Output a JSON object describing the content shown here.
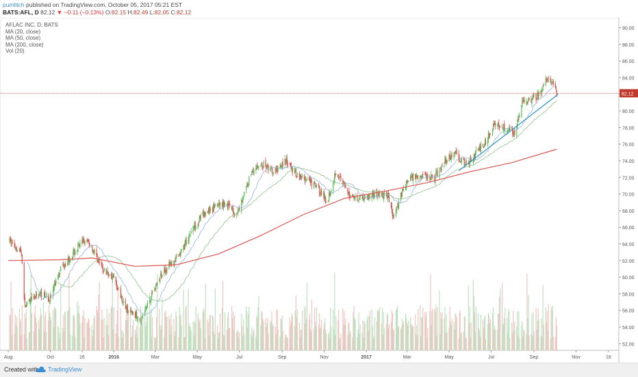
{
  "header": {
    "user": "pumlitch",
    "published": "published on TradingView.com, October 05, 2017 05:21 EST",
    "symbol": "BATS:AFL, D",
    "last": "82.12",
    "change": "−0.11 (−0.13%)",
    "o_label": "O:",
    "o": "82.15",
    "h_label": "H:",
    "h": "82.49",
    "l_label": "L:",
    "l": "82.05",
    "c_label": "C:",
    "c": "82.12"
  },
  "legend": [
    "AFLAC INC, D, BATS",
    "MA (20, close)",
    "MA (50, close)",
    "MA (200, close)",
    "Vol (20)"
  ],
  "footer": {
    "created": "Created with",
    "brand": "TradingView"
  },
  "colors": {
    "up": "#5cb85c",
    "down": "#d9534f",
    "ma200": "#d9534f",
    "trend": "#2a8fbf",
    "price_line": "#e05050"
  },
  "chart_data": {
    "type": "candlestick",
    "title": "AFLAC INC, D, BATS",
    "ylim": [
      51.2,
      91.2
    ],
    "y_ticks": [
      52,
      54,
      56,
      58,
      60,
      62,
      64,
      66,
      68,
      70,
      72,
      74,
      76,
      78,
      80,
      82,
      84,
      86,
      88,
      90
    ],
    "x_ticks": [
      "Aug",
      "Oct",
      "16",
      "2016",
      "Mar",
      "May",
      "Jul",
      "Sep",
      "Nov",
      "2017",
      "Mar",
      "May",
      "Jul",
      "Sep",
      "Nov",
      "18"
    ],
    "x_ticks_bold": [
      "2016",
      "2017"
    ],
    "last_price": "82.12",
    "price_anchors": [
      [
        "2015-08-01",
        64.5
      ],
      [
        "2015-08-20",
        63.0
      ],
      [
        "2015-08-25",
        56.5
      ],
      [
        "2015-09-15",
        58.0
      ],
      [
        "2015-10-01",
        57.5
      ],
      [
        "2015-10-15",
        61.0
      ],
      [
        "2015-11-05",
        63.0
      ],
      [
        "2015-11-20",
        64.5
      ],
      [
        "2015-12-01",
        63.5
      ],
      [
        "2015-12-15",
        61.0
      ],
      [
        "2015-12-31",
        60.0
      ],
      [
        "2016-01-20",
        56.0
      ],
      [
        "2016-02-10",
        55.0
      ],
      [
        "2016-02-25",
        58.0
      ],
      [
        "2016-03-15",
        61.0
      ],
      [
        "2016-04-05",
        62.5
      ],
      [
        "2016-04-25",
        66.0
      ],
      [
        "2016-05-15",
        68.0
      ],
      [
        "2016-06-10",
        69.0
      ],
      [
        "2016-06-27",
        67.5
      ],
      [
        "2016-07-10",
        70.5
      ],
      [
        "2016-07-20",
        73.0
      ],
      [
        "2016-08-05",
        73.5
      ],
      [
        "2016-08-20",
        72.5
      ],
      [
        "2016-09-05",
        74.0
      ],
      [
        "2016-09-20",
        72.5
      ],
      [
        "2016-10-10",
        71.5
      ],
      [
        "2016-10-25",
        70.5
      ],
      [
        "2016-11-05",
        69.0
      ],
      [
        "2016-11-18",
        72.8
      ],
      [
        "2016-12-05",
        70.0
      ],
      [
        "2016-12-20",
        69.5
      ],
      [
        "2017-01-15",
        70.0
      ],
      [
        "2017-02-01",
        69.8
      ],
      [
        "2017-02-10",
        67.0
      ],
      [
        "2017-02-20",
        70.0
      ],
      [
        "2017-03-05",
        72.0
      ],
      [
        "2017-03-20",
        72.3
      ],
      [
        "2017-04-10",
        72.0
      ],
      [
        "2017-04-25",
        74.0
      ],
      [
        "2017-05-10",
        75.0
      ],
      [
        "2017-05-25",
        73.5
      ],
      [
        "2017-06-10",
        75.0
      ],
      [
        "2017-06-25",
        76.5
      ],
      [
        "2017-07-05",
        78.5
      ],
      [
        "2017-07-20",
        78.0
      ],
      [
        "2017-08-05",
        77.5
      ],
      [
        "2017-08-15",
        81.0
      ],
      [
        "2017-08-30",
        81.5
      ],
      [
        "2017-09-10",
        82.0
      ],
      [
        "2017-09-20",
        84.0
      ],
      [
        "2017-09-30",
        83.0
      ],
      [
        "2017-10-04",
        82.12
      ]
    ],
    "series": [
      {
        "name": "MA (200, close)",
        "color": "#d9534f",
        "points": [
          [
            "2015-08-01",
            62.0
          ],
          [
            "2015-10-15",
            62.1
          ],
          [
            "2015-12-01",
            62.3
          ],
          [
            "2016-02-01",
            61.3
          ],
          [
            "2016-04-01",
            61.5
          ],
          [
            "2016-06-01",
            62.8
          ],
          [
            "2016-08-01",
            65.0
          ],
          [
            "2016-10-01",
            67.5
          ],
          [
            "2016-12-01",
            69.5
          ],
          [
            "2017-02-01",
            70.4
          ],
          [
            "2017-04-01",
            71.4
          ],
          [
            "2017-06-01",
            72.7
          ],
          [
            "2017-08-01",
            73.8
          ],
          [
            "2017-10-04",
            75.4
          ]
        ]
      }
    ],
    "trend_line": [
      [
        "2017-05-15",
        72.8
      ],
      [
        "2017-10-06",
        82.0
      ]
    ],
    "volume_label": "Vol (20)"
  }
}
